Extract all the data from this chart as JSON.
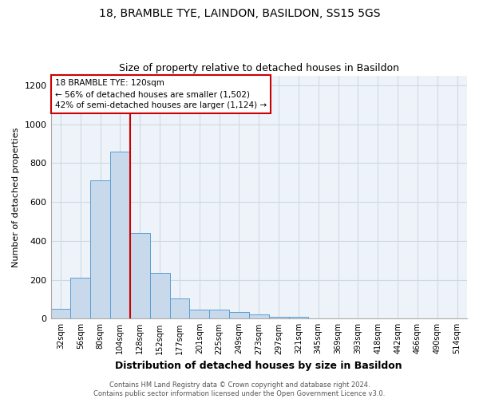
{
  "title1": "18, BRAMBLE TYE, LAINDON, BASILDON, SS15 5GS",
  "title2": "Size of property relative to detached houses in Basildon",
  "xlabel": "Distribution of detached houses by size in Basildon",
  "ylabel": "Number of detached properties",
  "footnote": "Contains HM Land Registry data © Crown copyright and database right 2024.\nContains public sector information licensed under the Open Government Licence v3.0.",
  "categories": [
    "32sqm",
    "56sqm",
    "80sqm",
    "104sqm",
    "128sqm",
    "152sqm",
    "177sqm",
    "201sqm",
    "225sqm",
    "249sqm",
    "273sqm",
    "297sqm",
    "321sqm",
    "345sqm",
    "369sqm",
    "393sqm",
    "418sqm",
    "442sqm",
    "466sqm",
    "490sqm",
    "514sqm"
  ],
  "values": [
    50,
    210,
    710,
    860,
    440,
    235,
    105,
    48,
    48,
    35,
    20,
    10,
    10,
    0,
    0,
    0,
    0,
    0,
    0,
    0,
    0
  ],
  "bar_color": "#c8d9eb",
  "bar_edge_color": "#5a9fd4",
  "red_line_color": "#cc0000",
  "annotation_title": "18 BRAMBLE TYE: 120sqm",
  "annotation_line1": "← 56% of detached houses are smaller (1,502)",
  "annotation_line2": "42% of semi-detached houses are larger (1,124) →",
  "annotation_box_color": "#ffffff",
  "annotation_box_edge": "#cc0000",
  "ylim": [
    0,
    1250
  ],
  "yticks": [
    0,
    200,
    400,
    600,
    800,
    1000,
    1200
  ],
  "grid_color": "#cdd9e5",
  "background_color": "#eef3f9"
}
